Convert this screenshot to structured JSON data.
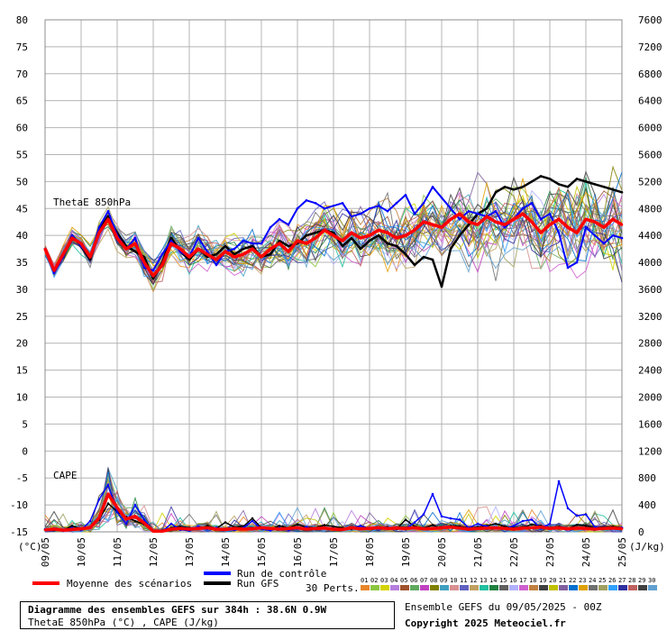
{
  "chart_data": {
    "type": "line",
    "title": "Diagramme des ensembles GEFS sur 384h : 38.6N 0.9W",
    "subtitle": "ThetaE 850hPa (°C) , CAPE (J/kg)",
    "panel_labels": [
      "ThetaE 850hPa",
      "CAPE"
    ],
    "left_axis": {
      "unit": "(°C)",
      "ylim": [
        -15,
        80
      ],
      "ticks": [
        80,
        75,
        70,
        65,
        60,
        55,
        50,
        45,
        40,
        35,
        30,
        25,
        20,
        15,
        10,
        5,
        0,
        -5,
        -10,
        -15
      ]
    },
    "right_axis": {
      "unit": "(J/kg)",
      "ylim": [
        0,
        7600
      ],
      "ticks": [
        7600,
        7200,
        6800,
        6400,
        6000,
        5600,
        5200,
        4800,
        4400,
        4000,
        3600,
        3200,
        2800,
        2400,
        2000,
        1600,
        1200,
        800,
        400,
        0
      ]
    },
    "x_ticks": [
      "09/05",
      "10/05",
      "11/05",
      "12/05",
      "13/05",
      "14/05",
      "15/05",
      "16/05",
      "17/05",
      "18/05",
      "19/05",
      "20/05",
      "21/05",
      "22/05",
      "23/05",
      "24/05",
      "25/05"
    ],
    "x_range_days": [
      0,
      16
    ],
    "time_step_h": 6,
    "grid": true,
    "theta_e": {
      "mean_name": "Moyenne des scénarios",
      "mean": [
        37.5,
        33.5,
        36.5,
        39.5,
        38.5,
        36.0,
        40.5,
        43.0,
        39.5,
        37.5,
        38.5,
        35.0,
        32.5,
        34.5,
        38.5,
        37.5,
        36.0,
        37.5,
        36.5,
        35.5,
        37.0,
        36.0,
        36.5,
        37.5,
        36.0,
        37.5,
        38.5,
        37.0,
        39.0,
        38.5,
        39.5,
        41.0,
        40.0,
        39.0,
        40.5,
        39.5,
        40.0,
        41.0,
        40.5,
        39.5,
        40.0,
        41.0,
        42.5,
        42.0,
        41.5,
        43.0,
        44.0,
        42.5,
        42.0,
        43.5,
        42.5,
        42.0,
        43.0,
        44.0,
        42.5,
        40.5,
        42.0,
        43.0,
        41.5,
        40.5,
        43.0,
        42.5,
        41.5,
        43.0,
        42.0
      ],
      "control_name": "Run de contrôle",
      "control": [
        37.5,
        33.0,
        36.0,
        40.0,
        38.0,
        36.0,
        41.5,
        44.5,
        40.0,
        37.5,
        39.5,
        34.0,
        33.5,
        36.5,
        39.0,
        37.0,
        36.0,
        39.5,
        37.0,
        34.5,
        37.0,
        37.5,
        39.0,
        38.5,
        38.5,
        41.5,
        43.0,
        42.0,
        45.0,
        46.5,
        46.0,
        45.0,
        45.5,
        46.0,
        43.5,
        44.0,
        45.0,
        45.5,
        44.5,
        46.0,
        47.5,
        44.0,
        46.0,
        49.0,
        47.0,
        45.0,
        43.0,
        44.5,
        44.0,
        43.5,
        44.5,
        41.5,
        43.0,
        45.0,
        46.0,
        43.0,
        44.0,
        40.5,
        34.0,
        35.0,
        41.5,
        40.0,
        38.5,
        40.0,
        39.5
      ],
      "gfs_name": "Run GFS",
      "gfs": [
        37.5,
        33.5,
        36.0,
        40.0,
        38.0,
        35.5,
        41.0,
        43.5,
        40.5,
        38.0,
        37.0,
        36.0,
        32.0,
        35.0,
        39.5,
        37.0,
        35.5,
        37.5,
        36.0,
        36.5,
        38.0,
        36.5,
        37.5,
        38.0,
        36.0,
        36.5,
        39.0,
        38.0,
        38.5,
        40.0,
        40.5,
        41.0,
        40.5,
        38.0,
        39.5,
        37.5,
        39.0,
        40.0,
        38.5,
        38.0,
        36.5,
        34.5,
        36.0,
        35.5,
        30.5,
        37.5,
        40.0,
        42.0,
        44.0,
        45.0,
        48.0,
        49.0,
        48.5,
        49.0,
        50.0,
        51.0,
        50.5,
        49.5,
        49.0,
        50.5,
        50.0,
        49.5,
        49.0,
        48.5,
        48.0
      ]
    },
    "cape": {
      "mean": [
        30,
        40,
        25,
        35,
        45,
        60,
        210,
        560,
        360,
        190,
        230,
        130,
        10,
        10,
        40,
        50,
        40,
        50,
        60,
        40,
        35,
        50,
        40,
        45,
        60,
        50,
        40,
        50,
        60,
        40,
        50,
        55,
        40,
        35,
        60,
        45,
        50,
        60,
        50,
        55,
        50,
        60,
        45,
        50,
        60,
        70,
        55,
        40,
        50,
        55,
        60,
        50,
        40,
        55,
        60,
        70,
        50,
        60,
        45,
        55,
        50,
        40,
        50,
        55,
        45
      ],
      "control": [
        40,
        35,
        15,
        60,
        25,
        160,
        480,
        700,
        290,
        120,
        400,
        180,
        10,
        5,
        120,
        30,
        20,
        80,
        40,
        60,
        30,
        25,
        60,
        160,
        40,
        20,
        60,
        30,
        45,
        70,
        40,
        55,
        50,
        40,
        60,
        90,
        50,
        45,
        60,
        65,
        40,
        140,
        260,
        560,
        230,
        200,
        180,
        60,
        120,
        80,
        60,
        50,
        90,
        160,
        180,
        50,
        120,
        750,
        350,
        240,
        260,
        70,
        50,
        60,
        60
      ],
      "gfs": [
        30,
        25,
        20,
        90,
        40,
        70,
        180,
        420,
        300,
        220,
        160,
        110,
        10,
        20,
        60,
        80,
        60,
        40,
        90,
        50,
        140,
        70,
        80,
        200,
        60,
        40,
        90,
        60,
        110,
        70,
        60,
        100,
        80,
        60,
        40,
        90,
        50,
        60,
        70,
        40,
        180,
        80,
        60,
        100,
        50,
        90,
        80,
        60,
        70,
        90,
        120,
        80,
        60,
        70,
        110,
        90,
        60,
        80,
        50,
        100,
        90,
        60,
        70,
        80,
        60
      ]
    },
    "perturbations": {
      "label": "30 Perts.",
      "count": 30,
      "numbers": [
        "01",
        "02",
        "03",
        "04",
        "05",
        "06",
        "07",
        "08",
        "09",
        "10",
        "11",
        "12",
        "13",
        "14",
        "15",
        "16",
        "17",
        "18",
        "19",
        "20",
        "21",
        "22",
        "23",
        "24",
        "25",
        "26",
        "27",
        "28",
        "29",
        "30"
      ],
      "colors": [
        "#e8862a",
        "#8cc63f",
        "#d4d400",
        "#b57edc",
        "#a0522d",
        "#5fa85f",
        "#c040c0",
        "#808000",
        "#40a0c0",
        "#d89090",
        "#6060c0",
        "#c0a060",
        "#20c0a0",
        "#208040",
        "#606060",
        "#b0b0ff",
        "#d060d0",
        "#c08040",
        "#404040",
        "#c0c000",
        "#8060a0",
        "#0070d0",
        "#e0a000",
        "#707070",
        "#a0a060",
        "#30a0ff",
        "#3030a0",
        "#c06060",
        "#404040",
        "#60a0d0"
      ]
    },
    "colors": {
      "mean": "#ff0000",
      "control": "#0000ff",
      "gfs": "#000000"
    }
  },
  "info": {
    "title": "Diagramme des ensembles GEFS sur 384h : 38.6N 0.9W",
    "subtitle": "ThetaE 850hPa (°C) , CAPE (J/kg)",
    "run": "Ensemble GEFS du 09/05/2025 - 00Z",
    "copyright": "Copyright 2025 Meteociel.fr"
  }
}
